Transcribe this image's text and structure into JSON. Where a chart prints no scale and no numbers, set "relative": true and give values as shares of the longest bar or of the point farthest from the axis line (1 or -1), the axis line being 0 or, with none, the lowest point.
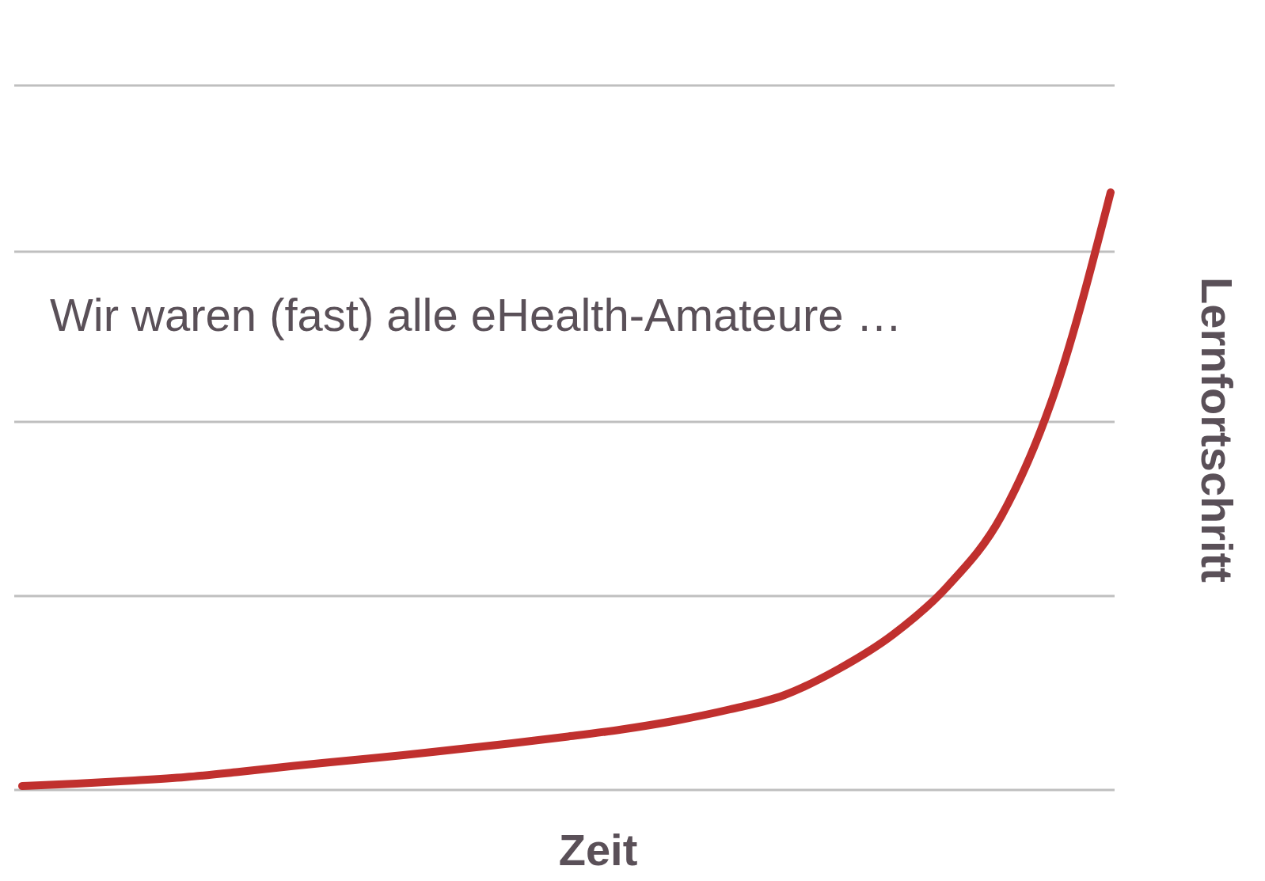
{
  "chart_data": {
    "type": "line",
    "title": "Wir waren (fast) alle eHealth-Amateure …",
    "xlabel": "Zeit",
    "ylabel": "Lernfortschritt",
    "relative": true,
    "grid": true,
    "categories": [
      null,
      null,
      null,
      null,
      null,
      null,
      null,
      null,
      null,
      null,
      null,
      null,
      null,
      null,
      null,
      null,
      null,
      null,
      null,
      null,
      null
    ],
    "series": [
      {
        "color": "#c0302e",
        "values": [
          0,
          0.004,
          0.009,
          0.015,
          0.024,
          0.034,
          0.043,
          0.052,
          0.062,
          0.072,
          0.083,
          0.095,
          0.11,
          0.129,
          0.153,
          0.197,
          0.255,
          0.336,
          0.456,
          0.671,
          1
        ]
      }
    ]
  }
}
